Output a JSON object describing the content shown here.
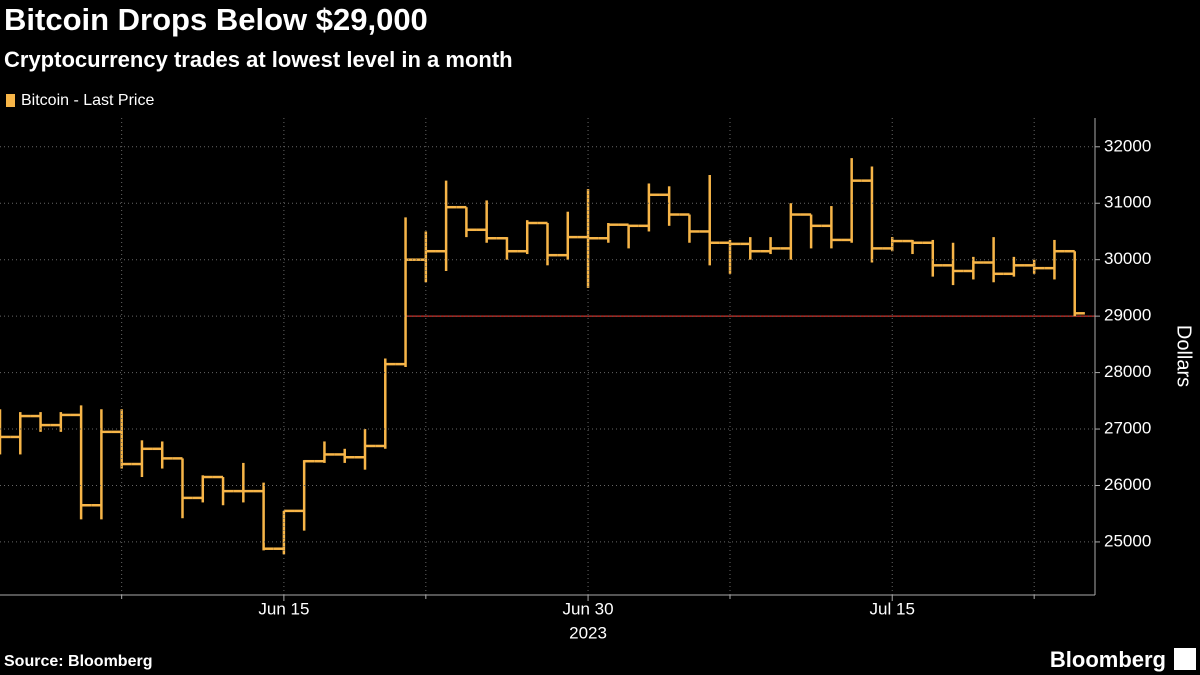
{
  "chart_data": {
    "type": "ohlc",
    "title": "Bitcoin Drops Below $29,000",
    "subtitle": "Cryptocurrency trades at lowest level in a month",
    "source": "Source: Bloomberg",
    "brand": "Bloomberg",
    "y_label": "Dollars",
    "x_year_label": "2023",
    "x": [
      "2023-06-01",
      "2023-06-02",
      "2023-06-03",
      "2023-06-04",
      "2023-06-05",
      "2023-06-06",
      "2023-06-07",
      "2023-06-08",
      "2023-06-09",
      "2023-06-10",
      "2023-06-11",
      "2023-06-12",
      "2023-06-13",
      "2023-06-14",
      "2023-06-15",
      "2023-06-16",
      "2023-06-17",
      "2023-06-18",
      "2023-06-19",
      "2023-06-20",
      "2023-06-21",
      "2023-06-22",
      "2023-06-23",
      "2023-06-24",
      "2023-06-25",
      "2023-06-26",
      "2023-06-27",
      "2023-06-28",
      "2023-06-29",
      "2023-06-30",
      "2023-07-01",
      "2023-07-02",
      "2023-07-03",
      "2023-07-04",
      "2023-07-05",
      "2023-07-06",
      "2023-07-07",
      "2023-07-08",
      "2023-07-09",
      "2023-07-10",
      "2023-07-11",
      "2023-07-12",
      "2023-07-13",
      "2023-07-14",
      "2023-07-15",
      "2023-07-16",
      "2023-07-17",
      "2023-07-18",
      "2023-07-19",
      "2023-07-20",
      "2023-07-21",
      "2023-07-22",
      "2023-07-23",
      "2023-07-24"
    ],
    "series": [
      {
        "name": "Bitcoin - Last Price",
        "color": "#f7b548",
        "open": [
          27200,
          26860,
          27230,
          27070,
          27250,
          25650,
          26950,
          26380,
          26650,
          26480,
          25780,
          26150,
          25900,
          25900,
          24880,
          25550,
          26430,
          26550,
          26500,
          26700,
          28150,
          30000,
          30150,
          30930,
          30530,
          30380,
          30150,
          30650,
          30080,
          30400,
          30380,
          30620,
          30600,
          31150,
          30800,
          30500,
          30300,
          30280,
          30150,
          30200,
          30800,
          30600,
          30350,
          31400,
          30200,
          30330,
          30300,
          29900,
          29800,
          29950,
          29750,
          29900,
          29850,
          30150
        ],
        "high": [
          27350,
          27300,
          27300,
          27300,
          27420,
          27350,
          27350,
          26800,
          26780,
          26480,
          26180,
          26150,
          26400,
          26050,
          25550,
          26450,
          26780,
          26650,
          27000,
          28250,
          30750,
          30500,
          31400,
          30930,
          31050,
          30400,
          30700,
          30650,
          30850,
          31250,
          30650,
          30620,
          31350,
          31300,
          30800,
          31500,
          30350,
          30400,
          30400,
          31000,
          30800,
          30950,
          31800,
          31650,
          30400,
          30350,
          30350,
          30300,
          30050,
          30400,
          30050,
          30000,
          30350,
          30150
        ],
        "low": [
          26550,
          26550,
          26950,
          26950,
          25400,
          25400,
          26300,
          26150,
          26300,
          25420,
          25700,
          25650,
          25700,
          24850,
          24780,
          25200,
          26400,
          26400,
          26280,
          26650,
          28100,
          29600,
          29800,
          30400,
          30300,
          30000,
          30100,
          29900,
          30000,
          29500,
          30300,
          30200,
          30500,
          30600,
          30300,
          29900,
          29750,
          30000,
          30100,
          30000,
          30200,
          30200,
          30300,
          29950,
          30150,
          30100,
          29700,
          29550,
          29650,
          29600,
          29700,
          29750,
          29650,
          29000
        ],
        "close": [
          26860,
          27230,
          27070,
          27250,
          25650,
          26950,
          26380,
          26650,
          26480,
          25780,
          26150,
          25900,
          25900,
          24880,
          25550,
          26430,
          26550,
          26500,
          26700,
          28150,
          30000,
          30150,
          30930,
          30530,
          30380,
          30150,
          30650,
          30080,
          30400,
          30380,
          30620,
          30600,
          31150,
          30800,
          30500,
          30300,
          30280,
          30150,
          30200,
          30800,
          30600,
          30350,
          31400,
          30200,
          30330,
          30300,
          29900,
          29800,
          29950,
          29750,
          29900,
          29850,
          30150,
          29050
        ]
      }
    ],
    "reference_line": {
      "value": 29000,
      "from": "2023-06-21",
      "color": "#d0322a"
    },
    "xlim": [
      "2023-06-01",
      "2023-07-25"
    ],
    "xticks": [
      {
        "value": "2023-06-15",
        "label": "Jun 15"
      },
      {
        "value": "2023-06-30",
        "label": "Jun 30"
      },
      {
        "value": "2023-07-15",
        "label": "Jul 15"
      }
    ],
    "xminorticks": [
      "2023-06-07",
      "2023-06-22",
      "2023-07-07",
      "2023-07-22"
    ],
    "ylim": [
      24060,
      32510
    ],
    "yticks": [
      25000,
      26000,
      27000,
      28000,
      29000,
      30000,
      31000,
      32000
    ],
    "grid": true,
    "legend": "top-left"
  }
}
